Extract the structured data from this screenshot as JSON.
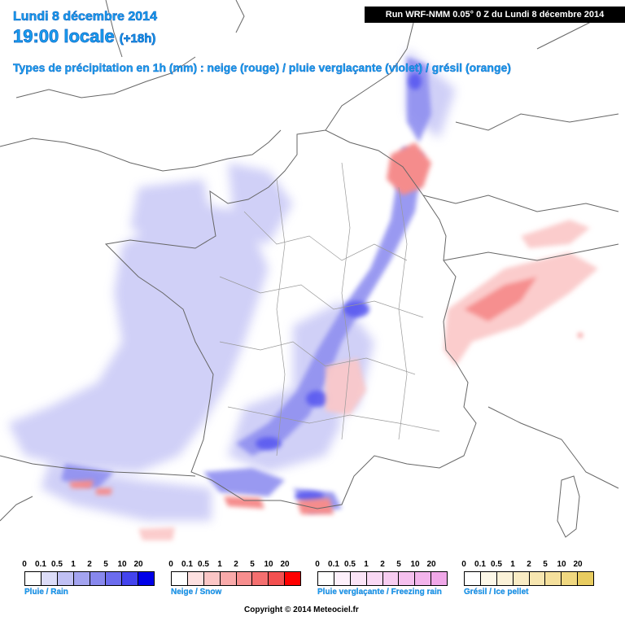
{
  "header": {
    "date": "Lundi 8 décembre 2014",
    "time": "19:00 locale",
    "lead": "(+18h)",
    "subtitle": "Types de précipitation en 1h (mm) : neige (rouge) / pluie verglaçante (violet) / grésil (orange)",
    "run": "Run WRF-NMM 0.05° 0 Z du Lundi 8 décembre 2014"
  },
  "legends": [
    {
      "label": "Pluie / Rain",
      "ticks": [
        "0",
        "0.1",
        "0.5",
        "1",
        "2",
        "5",
        "10",
        "20"
      ],
      "colors": [
        "#ffffff",
        "#dcdcf8",
        "#c0c0f4",
        "#a4a4f0",
        "#8888ee",
        "#6c6cee",
        "#4444ee",
        "#0000e8"
      ]
    },
    {
      "label": "Neige / Snow",
      "ticks": [
        "0",
        "0.1",
        "0.5",
        "1",
        "2",
        "5",
        "10",
        "20"
      ],
      "colors": [
        "#ffffff",
        "#fde0e0",
        "#fbc6c6",
        "#f9aaaa",
        "#f78e8e",
        "#f57070",
        "#f35050",
        "#ff0000"
      ]
    },
    {
      "label": "Pluie verglaçante / Freezing rain",
      "ticks": [
        "0",
        "0.1",
        "0.5",
        "1",
        "2",
        "5",
        "10",
        "20"
      ],
      "colors": [
        "#ffffff",
        "#fdf0fb",
        "#fbe4f7",
        "#f9d8f4",
        "#f7ccf1",
        "#f5c0ee",
        "#f3b4eb",
        "#f0a8e8"
      ]
    },
    {
      "label": "Grésil / Ice pellet",
      "ticks": [
        "0",
        "0.1",
        "0.5",
        "1",
        "2",
        "5",
        "10",
        "20"
      ],
      "colors": [
        "#ffffff",
        "#fdf8e8",
        "#fbf2d8",
        "#f9ecc4",
        "#f7e6b0",
        "#f5e09c",
        "#f0d880",
        "#e8cc60"
      ]
    }
  ],
  "colors": {
    "title": "#1aa0f0",
    "rain_light": "#c8c8f6",
    "rain_mid": "#8f8ff0",
    "rain_heavy": "#5a5af0",
    "snow_light": "#fbc6c6",
    "snow_mid": "#f58c8c",
    "snow_heavy": "#f04848",
    "borders": "#666666"
  },
  "footer": {
    "copyright": "Copyright © 2014 Meteociel.fr"
  }
}
